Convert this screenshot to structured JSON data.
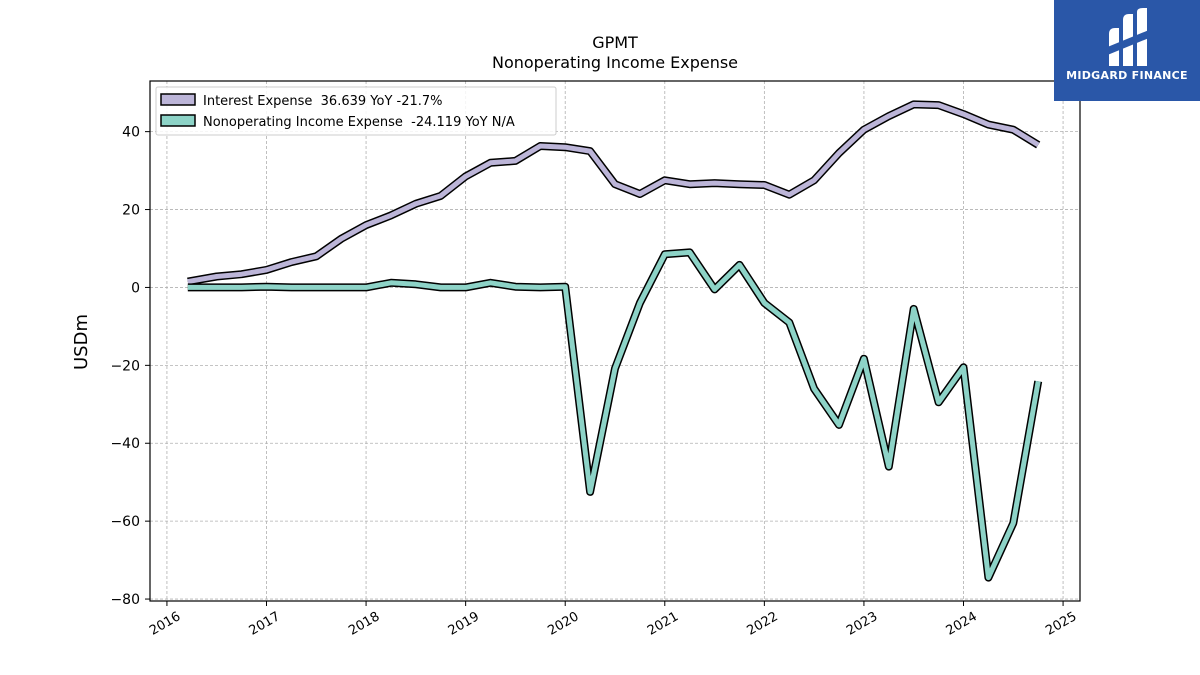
{
  "chart_data": {
    "type": "line",
    "title": "GPMT",
    "subtitle": "Nonoperating Income Expense",
    "xlabel": "",
    "ylabel": "USDm",
    "xlim": [
      2015.83,
      2025.17
    ],
    "ylim": [
      -80.5,
      53
    ],
    "x_ticks": [
      2016,
      2017,
      2018,
      2019,
      2020,
      2021,
      2022,
      2023,
      2024,
      2025
    ],
    "x_tick_labels": [
      "2016",
      "2017",
      "2018",
      "2019",
      "2020",
      "2021",
      "2022",
      "2023",
      "2024",
      "2025"
    ],
    "y_ticks": [
      -80,
      -60,
      -40,
      -20,
      0,
      20,
      40
    ],
    "y_tick_labels": [
      "−80",
      "−60",
      "−40",
      "−20",
      "0",
      "20",
      "40"
    ],
    "grid": true,
    "legend_position": "top-left",
    "x": [
      2016.21,
      2016.5,
      2016.75,
      2017.0,
      2017.25,
      2017.5,
      2017.75,
      2018.0,
      2018.25,
      2018.5,
      2018.75,
      2019.0,
      2019.25,
      2019.5,
      2019.75,
      2020.0,
      2020.25,
      2020.5,
      2020.75,
      2021.0,
      2021.25,
      2021.5,
      2021.75,
      2022.0,
      2022.25,
      2022.5,
      2022.75,
      2023.0,
      2023.25,
      2023.5,
      2023.75,
      2024.0,
      2024.25,
      2024.5,
      2024.75
    ],
    "series": [
      {
        "name": "Interest Expense",
        "legend_label": "Interest Expense  36.639 YoY -21.7%",
        "color": "#bcb5d8",
        "values": [
          1.5,
          2.8,
          3.4,
          4.5,
          6.5,
          8.0,
          12.5,
          16.0,
          18.5,
          21.5,
          23.5,
          28.5,
          32.0,
          32.5,
          36.3,
          36.0,
          35.0,
          26.5,
          24.0,
          27.5,
          26.5,
          26.8,
          26.5,
          26.3,
          23.8,
          27.5,
          34.5,
          40.5,
          44.0,
          47.0,
          46.8,
          44.5,
          41.8,
          40.5,
          36.6
        ]
      },
      {
        "name": "Nonoperating Income Expense",
        "legend_label": "Nonoperating Income Expense  -24.119 YoY N/A",
        "color": "#8dd3c7",
        "values": [
          0.0,
          0.0,
          0.0,
          0.2,
          0.0,
          0.0,
          0.0,
          0.0,
          1.2,
          0.8,
          0.0,
          0.0,
          1.2,
          0.2,
          0.0,
          0.2,
          -52.5,
          -20.8,
          -4.0,
          8.5,
          9.0,
          -0.5,
          5.8,
          -4.0,
          -9.0,
          -26.0,
          -35.3,
          -18.3,
          -46.0,
          -5.5,
          -29.5,
          -20.5,
          -74.5,
          -60.5,
          -24.1
        ]
      }
    ]
  },
  "logo": {
    "text": "MIDGARD FINANCE",
    "background": "#2a57a8"
  }
}
